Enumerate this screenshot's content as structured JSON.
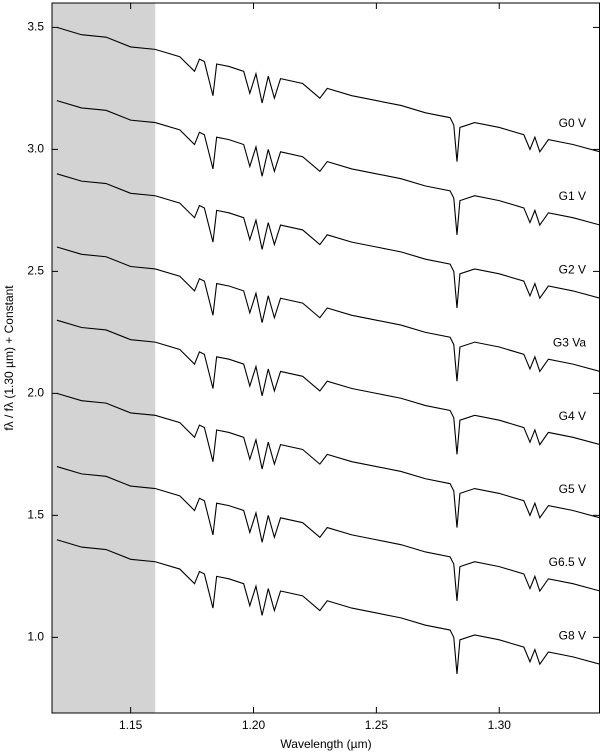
{
  "chart_data": {
    "type": "line",
    "x_label": "Wavelength (µm)",
    "y_label": "fλ / fλ (1.30 µm) + Constant",
    "xlim": [
      1.118,
      1.341
    ],
    "ylim": [
      0.69,
      3.6
    ],
    "xticks": [
      1.15,
      {
        "value": 1.2,
        "label": "1.20"
      },
      1.25,
      {
        "value": 1.3,
        "label": "1.30"
      }
    ],
    "yticks": [
      {
        "value": 1,
        "label": "1.0"
      },
      1.5,
      {
        "value": 2,
        "label": "2.0"
      },
      2.5,
      {
        "value": 3,
        "label": "3.0"
      },
      3.5
    ],
    "shaded_xlim": [
      1.118,
      1.16
    ],
    "shade_color": "#d3d3d3",
    "grid": false,
    "x": [
      1.12,
      1.13,
      1.14,
      1.15,
      1.16,
      1.17,
      1.176,
      1.178,
      1.18,
      1.1835,
      1.185,
      1.19,
      1.196,
      1.1985,
      1.201,
      1.2035,
      1.206,
      1.2085,
      1.211,
      1.22,
      1.227,
      1.23,
      1.24,
      1.25,
      1.26,
      1.27,
      1.28,
      1.2815,
      1.2828,
      1.284,
      1.29,
      1.3,
      1.31,
      1.3125,
      1.3145,
      1.3165,
      1.32,
      1.33,
      1.341
    ],
    "series": [
      {
        "name": "G0 V",
        "color": "#000000",
        "values": [
          3.5,
          3.47,
          3.46,
          3.42,
          3.41,
          3.38,
          3.32,
          3.37,
          3.36,
          3.22,
          3.35,
          3.34,
          3.32,
          3.23,
          3.31,
          3.19,
          3.3,
          3.21,
          3.29,
          3.27,
          3.21,
          3.25,
          3.22,
          3.2,
          3.18,
          3.15,
          3.13,
          3.1,
          2.95,
          3.09,
          3.11,
          3.09,
          3.06,
          3.0,
          3.05,
          2.99,
          3.04,
          3.02,
          2.99
        ]
      },
      {
        "name": "G1 V",
        "color": "#000000",
        "values": [
          3.2,
          3.17,
          3.16,
          3.12,
          3.11,
          3.08,
          3.02,
          3.07,
          3.06,
          2.92,
          3.05,
          3.04,
          3.02,
          2.93,
          3.01,
          2.89,
          3.0,
          2.91,
          2.99,
          2.97,
          2.91,
          2.95,
          2.92,
          2.9,
          2.88,
          2.85,
          2.83,
          2.8,
          2.65,
          2.79,
          2.81,
          2.79,
          2.76,
          2.7,
          2.75,
          2.69,
          2.74,
          2.72,
          2.69
        ]
      },
      {
        "name": "G2 V",
        "color": "#000000",
        "values": [
          2.9,
          2.87,
          2.86,
          2.82,
          2.81,
          2.78,
          2.72,
          2.77,
          2.76,
          2.62,
          2.75,
          2.74,
          2.72,
          2.63,
          2.71,
          2.59,
          2.7,
          2.61,
          2.69,
          2.67,
          2.61,
          2.65,
          2.62,
          2.6,
          2.58,
          2.55,
          2.53,
          2.5,
          2.35,
          2.49,
          2.51,
          2.49,
          2.46,
          2.4,
          2.45,
          2.39,
          2.44,
          2.42,
          2.39
        ]
      },
      {
        "name": "G3 Va",
        "color": "#000000",
        "values": [
          2.6,
          2.57,
          2.56,
          2.52,
          2.51,
          2.48,
          2.42,
          2.47,
          2.46,
          2.32,
          2.45,
          2.44,
          2.42,
          2.33,
          2.41,
          2.29,
          2.4,
          2.31,
          2.39,
          2.37,
          2.31,
          2.35,
          2.32,
          2.3,
          2.28,
          2.25,
          2.23,
          2.2,
          2.05,
          2.19,
          2.21,
          2.19,
          2.16,
          2.1,
          2.15,
          2.09,
          2.14,
          2.12,
          2.09
        ]
      },
      {
        "name": "G4 V",
        "color": "#000000",
        "values": [
          2.3,
          2.27,
          2.26,
          2.22,
          2.21,
          2.18,
          2.12,
          2.17,
          2.16,
          2.02,
          2.15,
          2.14,
          2.12,
          2.03,
          2.11,
          1.99,
          2.1,
          2.01,
          2.09,
          2.07,
          2.01,
          2.05,
          2.02,
          2.0,
          1.98,
          1.95,
          1.93,
          1.9,
          1.75,
          1.89,
          1.91,
          1.89,
          1.86,
          1.8,
          1.85,
          1.79,
          1.84,
          1.82,
          1.79
        ]
      },
      {
        "name": "G5 V",
        "color": "#000000",
        "values": [
          2.0,
          1.97,
          1.96,
          1.92,
          1.91,
          1.88,
          1.82,
          1.87,
          1.86,
          1.72,
          1.85,
          1.84,
          1.82,
          1.73,
          1.81,
          1.69,
          1.8,
          1.71,
          1.79,
          1.77,
          1.71,
          1.75,
          1.72,
          1.7,
          1.68,
          1.65,
          1.63,
          1.6,
          1.45,
          1.59,
          1.61,
          1.59,
          1.56,
          1.5,
          1.55,
          1.49,
          1.54,
          1.52,
          1.49
        ]
      },
      {
        "name": "G6.5 V",
        "color": "#000000",
        "values": [
          1.7,
          1.67,
          1.66,
          1.62,
          1.61,
          1.58,
          1.52,
          1.57,
          1.56,
          1.42,
          1.55,
          1.54,
          1.52,
          1.43,
          1.51,
          1.39,
          1.5,
          1.41,
          1.49,
          1.47,
          1.41,
          1.45,
          1.42,
          1.4,
          1.38,
          1.35,
          1.33,
          1.3,
          1.15,
          1.29,
          1.31,
          1.29,
          1.26,
          1.2,
          1.25,
          1.19,
          1.24,
          1.22,
          1.19
        ]
      },
      {
        "name": "G8 V",
        "color": "#000000",
        "values": [
          1.4,
          1.37,
          1.36,
          1.32,
          1.31,
          1.28,
          1.22,
          1.27,
          1.26,
          1.12,
          1.25,
          1.24,
          1.22,
          1.13,
          1.21,
          1.09,
          1.2,
          1.11,
          1.19,
          1.17,
          1.11,
          1.15,
          1.12,
          1.1,
          1.08,
          1.05,
          1.03,
          1.0,
          0.85,
          0.99,
          1.01,
          0.99,
          0.96,
          0.9,
          0.95,
          0.89,
          0.94,
          0.92,
          0.89
        ]
      }
    ]
  }
}
